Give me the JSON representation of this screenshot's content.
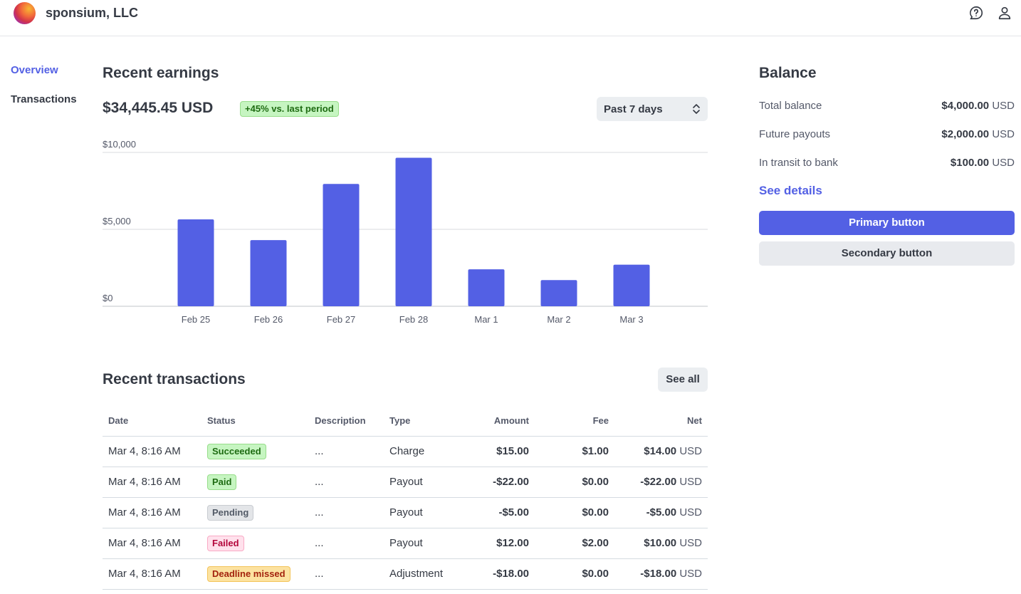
{
  "header": {
    "company_name": "sponsium, LLC",
    "icons": [
      "help-icon",
      "user-icon"
    ]
  },
  "sidebar": {
    "items": [
      {
        "label": "Overview",
        "active": true
      },
      {
        "label": "Transactions",
        "active": false
      }
    ]
  },
  "earnings": {
    "title": "Recent earnings",
    "total": "$34,445.45 USD",
    "change_badge": "+45% vs. last period",
    "period_select": "Past 7 days"
  },
  "chart_data": {
    "type": "bar",
    "categories": [
      "Feb 25",
      "Feb 26",
      "Feb 27",
      "Feb 28",
      "Mar 1",
      "Mar 2",
      "Mar 3"
    ],
    "values": [
      5650,
      4300,
      7950,
      9650,
      2400,
      1700,
      2700
    ],
    "y_ticks": [
      "$0",
      "$5,000",
      "$10,000"
    ],
    "ylim": [
      0,
      10000
    ],
    "bar_color": "#5360e4",
    "grid": true
  },
  "transactions": {
    "title": "Recent transactions",
    "see_all": "See all",
    "columns": [
      "Date",
      "Status",
      "Description",
      "Type",
      "Amount",
      "Fee",
      "Net"
    ],
    "currency": "USD",
    "rows": [
      {
        "date": "Mar 4, 8:16 AM",
        "status": "Succeeded",
        "status_color": "green",
        "description": "...",
        "type": "Charge",
        "amount": "$15.00",
        "fee": "$1.00",
        "net": "$14.00"
      },
      {
        "date": "Mar 4, 8:16 AM",
        "status": "Paid",
        "status_color": "green",
        "description": "...",
        "type": "Payout",
        "amount": "-$22.00",
        "fee": "$0.00",
        "net": "-$22.00"
      },
      {
        "date": "Mar 4, 8:16 AM",
        "status": "Pending",
        "status_color": "gray",
        "description": "...",
        "type": "Payout",
        "amount": "-$5.00",
        "fee": "$0.00",
        "net": "-$5.00"
      },
      {
        "date": "Mar 4, 8:16 AM",
        "status": "Failed",
        "status_color": "red",
        "description": "...",
        "type": "Payout",
        "amount": "$12.00",
        "fee": "$2.00",
        "net": "$10.00"
      },
      {
        "date": "Mar 4, 8:16 AM",
        "status": "Deadline missed",
        "status_color": "yellow",
        "description": "...",
        "type": "Adjustment",
        "amount": "-$18.00",
        "fee": "$0.00",
        "net": "-$18.00"
      }
    ]
  },
  "balance": {
    "title": "Balance",
    "rows": [
      {
        "label": "Total balance",
        "amount": "$4,000.00",
        "currency": "USD"
      },
      {
        "label": "Future payouts",
        "amount": "$2,000.00",
        "currency": "USD"
      },
      {
        "label": "In transit to bank",
        "amount": "$100.00",
        "currency": "USD"
      }
    ],
    "see_details": "See details",
    "primary_button": "Primary button",
    "secondary_button": "Secondary button"
  },
  "colors": {
    "accent": "#5360e4",
    "text": "#353a44",
    "muted": "#545969"
  }
}
